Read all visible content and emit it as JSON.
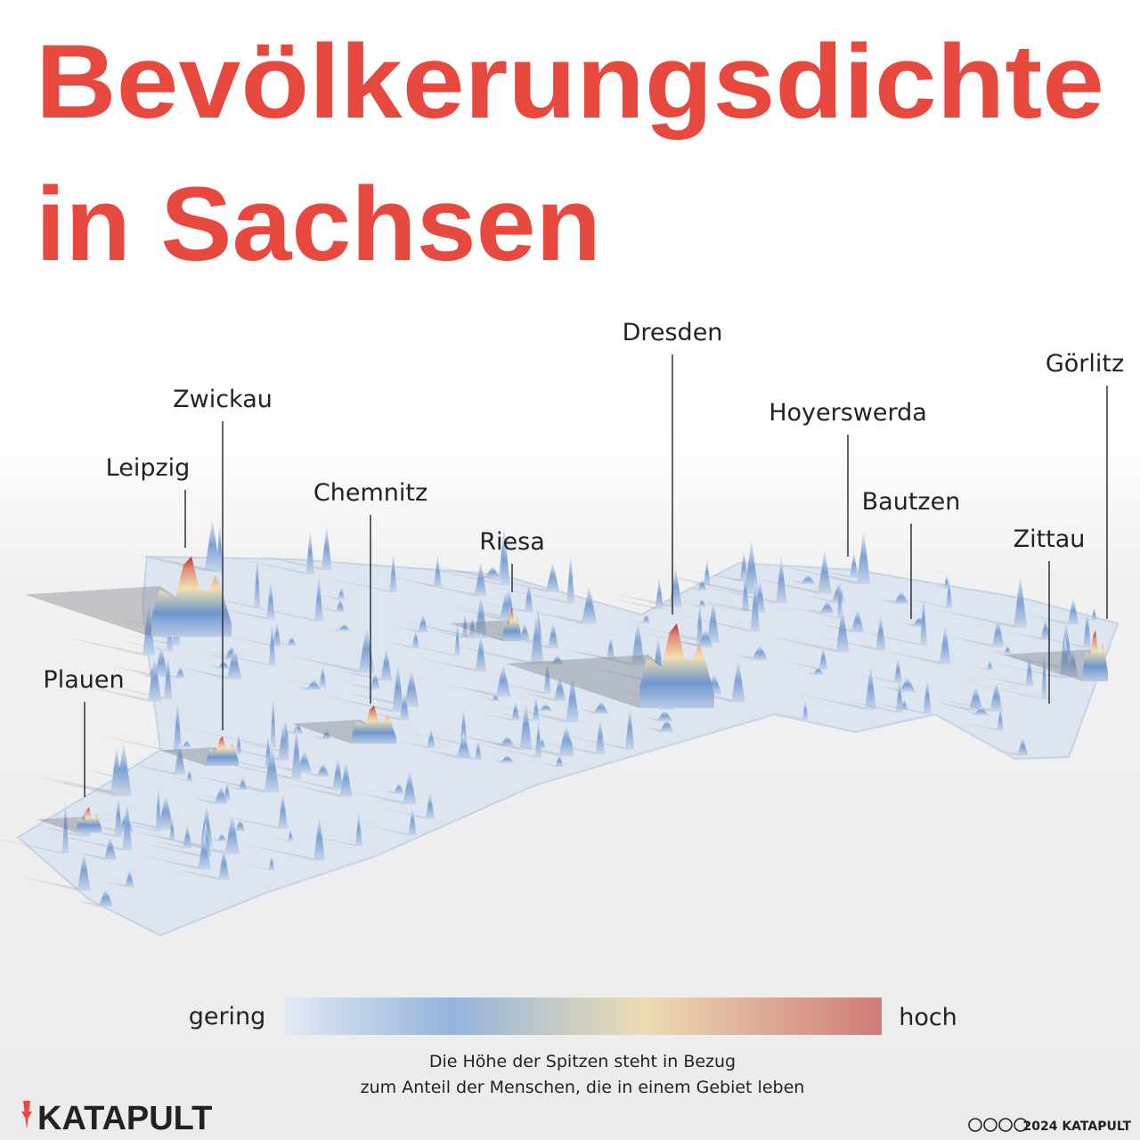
{
  "title": {
    "line1": "Bevölkerungsdichte",
    "line2": "in Sachsen"
  },
  "cities": [
    {
      "label": "Dresden"
    },
    {
      "label": "Görlitz"
    },
    {
      "label": "Hoyerswerda"
    },
    {
      "label": "Zwickau"
    },
    {
      "label": "Leipzig"
    },
    {
      "label": "Chemnitz"
    },
    {
      "label": "Riesa"
    },
    {
      "label": "Bautzen"
    },
    {
      "label": "Zittau"
    },
    {
      "label": "Plauen"
    }
  ],
  "legend": {
    "low": "gering",
    "high": "hoch"
  },
  "caption": {
    "line1": "Die Höhe der Spitzen steht in Bezug",
    "line2": "zum Anteil der Menschen, die in einem Gebiet leben"
  },
  "logo": "KATAPULT",
  "copyright": "2024 KATAPULT"
}
